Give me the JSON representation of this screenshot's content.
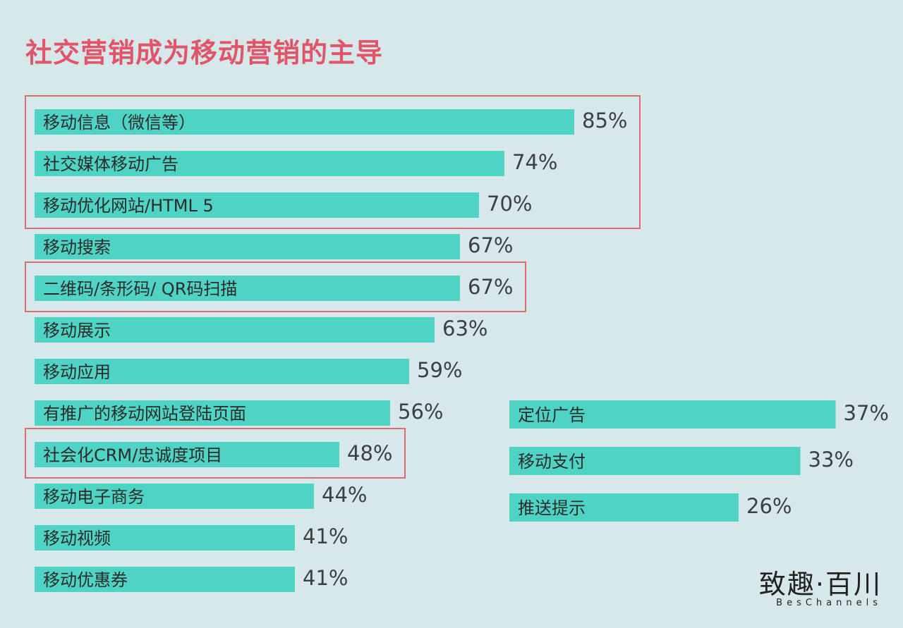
{
  "title": "社交营销成为移动营销的主导",
  "logo": {
    "cn": "致趣·百川",
    "en": "BesChannels"
  },
  "colors": {
    "bar": "#4ed3c4",
    "highlight": "#de6b6f",
    "title": "#e0556a",
    "background": "#d7e8ea"
  },
  "chart_data": [
    {
      "type": "bar",
      "orientation": "horizontal",
      "categories": [
        "移动信息（微信等）",
        "社交媒体移动广告",
        "移动优化网站/HTML 5",
        "移动搜索",
        "二维码/条形码/ QR码扫描",
        "移动展示",
        "移动应用",
        "有推广的移动网站登陆页面",
        "社会化CRM/忠诚度项目",
        "移动电子商务",
        "移动视频",
        "移动优惠券"
      ],
      "values": [
        85,
        74,
        70,
        67,
        67,
        63,
        59,
        56,
        48,
        44,
        41,
        41
      ],
      "value_labels": [
        "85%",
        "74%",
        "70%",
        "67%",
        "67%",
        "63%",
        "59%",
        "56%",
        "48%",
        "44%",
        "41%",
        "41%"
      ],
      "highlight_groups": [
        [
          0,
          1,
          2
        ],
        [
          4
        ],
        [
          8
        ]
      ]
    },
    {
      "type": "bar",
      "orientation": "horizontal",
      "categories": [
        "定位广告",
        "移动支付",
        "推送提示"
      ],
      "values": [
        37,
        33,
        26
      ],
      "value_labels": [
        "37%",
        "33%",
        "26%"
      ]
    }
  ]
}
